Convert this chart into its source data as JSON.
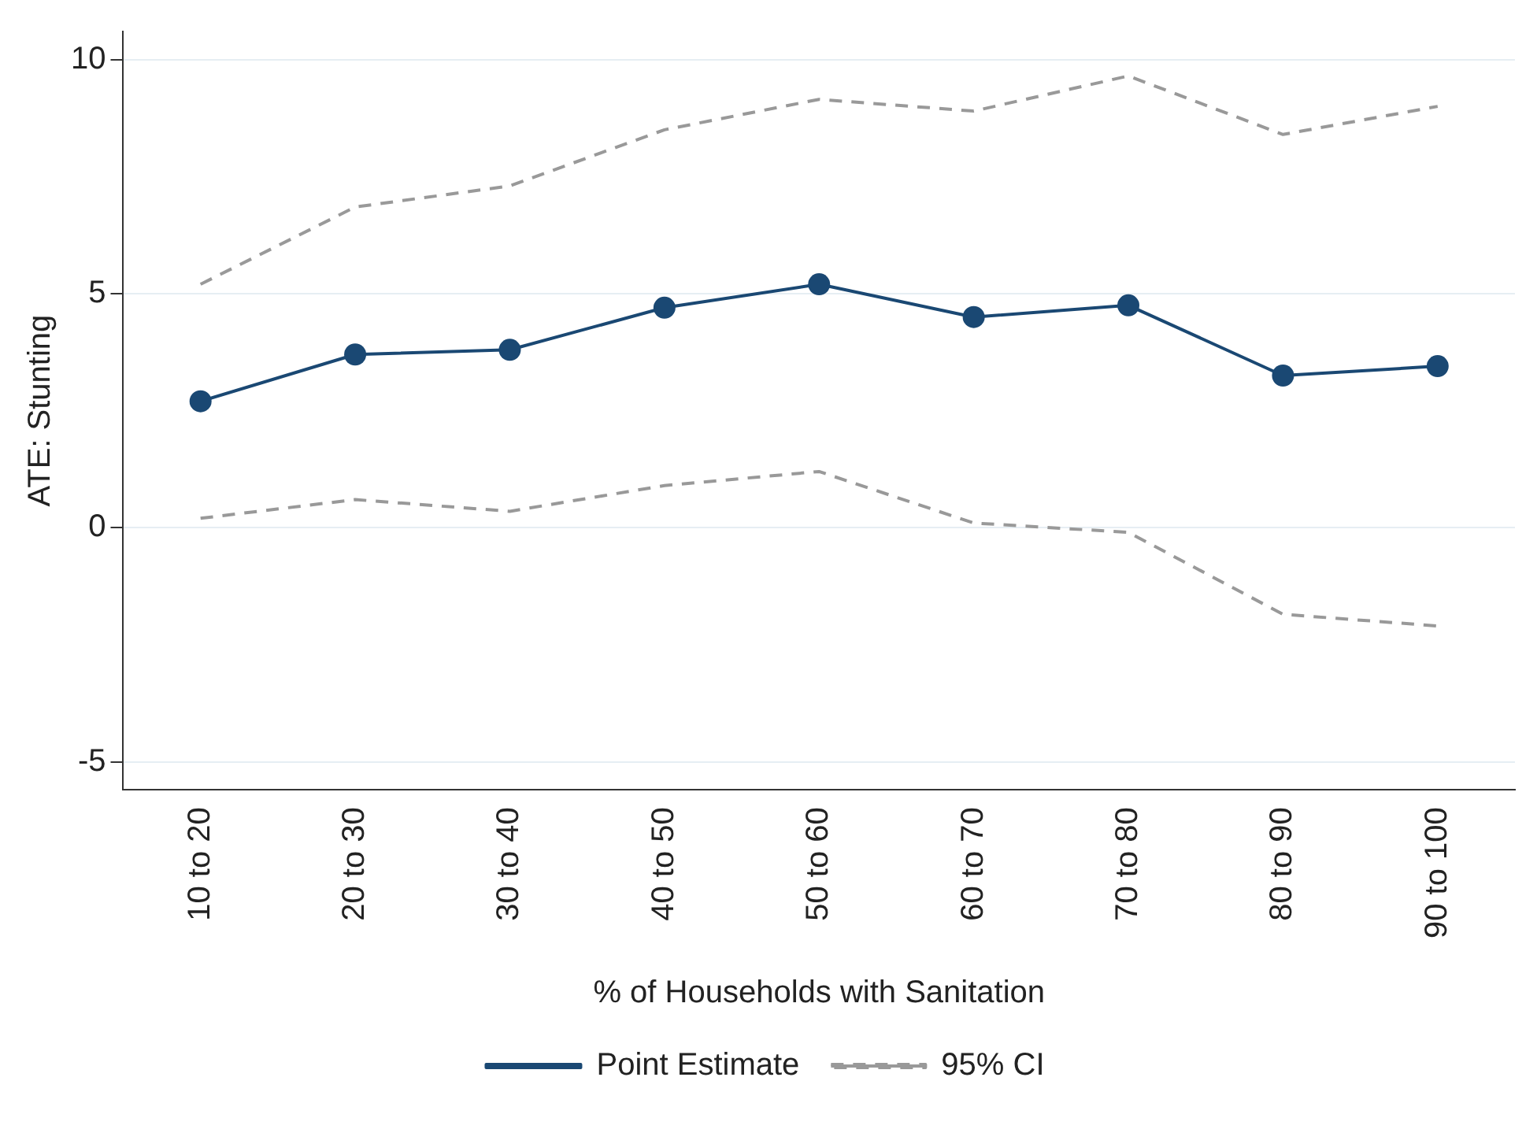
{
  "chart_data": {
    "type": "line",
    "xlabel": "% of Households with Sanitation",
    "ylabel": "ATE: Stunting",
    "categories": [
      "10 to 20",
      "20 to 30",
      "30 to 40",
      "40 to 50",
      "50 to 60",
      "60 to 70",
      "70 to 80",
      "80 to 90",
      "90 to 100"
    ],
    "series": [
      {
        "name": "Point Estimate",
        "color": "#1a4873",
        "marker": "circle",
        "line_style": "solid",
        "values": [
          2.7,
          3.7,
          3.8,
          4.7,
          5.2,
          4.5,
          4.75,
          3.25,
          3.45
        ]
      },
      {
        "name": "95% CI",
        "color": "#999999",
        "marker": "none",
        "line_style": "dashed",
        "values": [
          5.2,
          6.85,
          7.3,
          8.5,
          9.15,
          8.9,
          9.65,
          8.4,
          9.0
        ]
      },
      {
        "color": "#999999",
        "marker": "none",
        "line_style": "dashed",
        "values": [
          0.2,
          0.6,
          0.35,
          0.9,
          1.2,
          0.1,
          -0.1,
          -1.85,
          -2.1
        ]
      }
    ],
    "ylim": [
      -5.6,
      10.6
    ],
    "yticks": [
      -5,
      0,
      5,
      10
    ],
    "grid": "y",
    "legend": "bottom"
  }
}
